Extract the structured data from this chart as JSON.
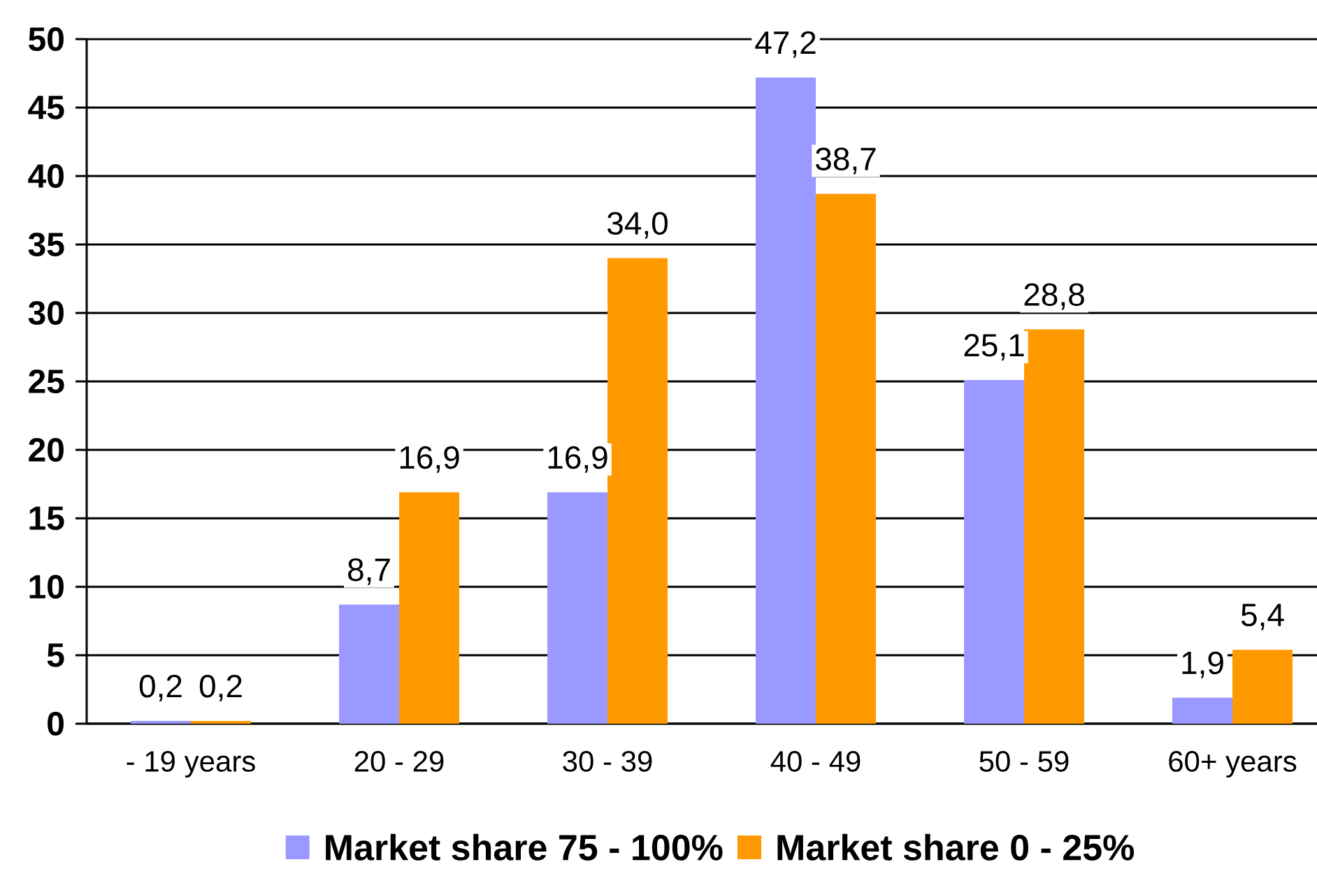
{
  "chart_data": {
    "type": "bar",
    "categories": [
      "- 19 years",
      "20 - 29",
      "30 - 39",
      "40 - 49",
      "50 - 59",
      "60+ years"
    ],
    "series": [
      {
        "name": "Market share 75 - 100%",
        "color": "#9999ff",
        "values": [
          0.2,
          8.7,
          16.9,
          47.2,
          25.1,
          1.9
        ],
        "value_labels": [
          "0,2",
          "8,7",
          "16,9",
          "47,2",
          "25,1",
          "1,9"
        ]
      },
      {
        "name": "Market share 0 - 25%",
        "color": "#ff9900",
        "values": [
          0.2,
          16.9,
          34.0,
          38.7,
          28.8,
          5.4
        ],
        "value_labels": [
          "0,2",
          "16,9",
          "34,0",
          "38,7",
          "28,8",
          "5,4"
        ]
      }
    ],
    "ylim": [
      0,
      50
    ],
    "yticks": [
      0,
      5,
      10,
      15,
      20,
      25,
      30,
      35,
      40,
      45,
      50
    ],
    "grid": "y",
    "legend": "bottom"
  }
}
